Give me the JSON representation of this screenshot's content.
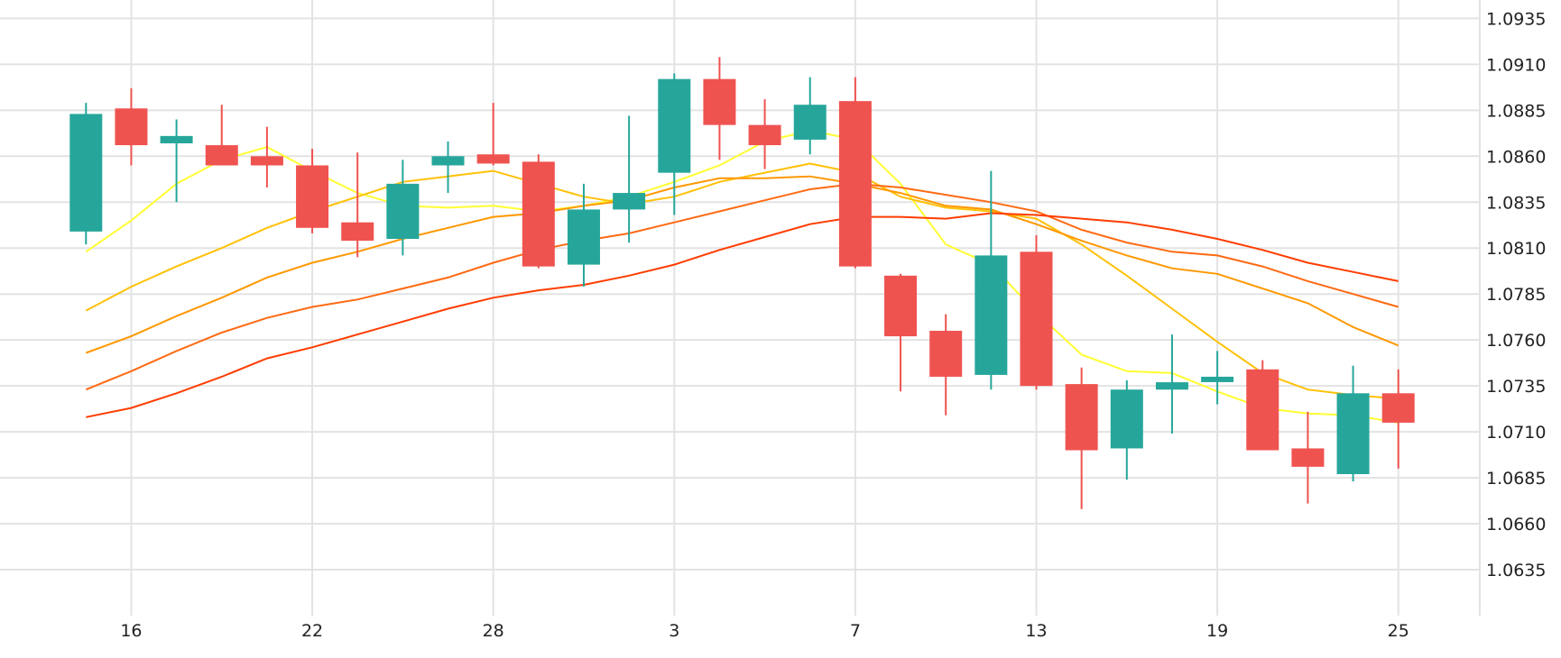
{
  "chart_data": {
    "type": "candlestick",
    "title": "",
    "xlabel": "",
    "ylabel": "",
    "ylim": [
      1.061,
      1.0945
    ],
    "grid": true,
    "y_ticks": [
      "1.0935",
      "1.0910",
      "1.0885",
      "1.0860",
      "1.0835",
      "1.0810",
      "1.0785",
      "1.0760",
      "1.0735",
      "1.0710",
      "1.0685",
      "1.0660",
      "1.0635"
    ],
    "x_ticks": [
      {
        "label": "16",
        "x": 1
      },
      {
        "label": "22",
        "x": 5
      },
      {
        "label": "28",
        "x": 9
      },
      {
        "label": "3",
        "x": 13
      },
      {
        "label": "7",
        "x": 17
      },
      {
        "label": "13",
        "x": 21
      },
      {
        "label": "19",
        "x": 25
      },
      {
        "label": "25",
        "x": 29
      }
    ],
    "x_range": [
      -1.9,
      30.8
    ],
    "colors": {
      "up": "#26a69a",
      "down": "#ef5350",
      "grid": "#e3e3e3",
      "text": "#222222"
    },
    "candles": [
      {
        "x": 0,
        "open": 1.0819,
        "high": 1.0889,
        "low": 1.0812,
        "close": 1.0883
      },
      {
        "x": 1,
        "open": 1.0886,
        "high": 1.0897,
        "low": 1.0855,
        "close": 1.0866
      },
      {
        "x": 2,
        "open": 1.0867,
        "high": 1.088,
        "low": 1.0835,
        "close": 1.0871
      },
      {
        "x": 3,
        "open": 1.0866,
        "high": 1.0888,
        "low": 1.0855,
        "close": 1.0855
      },
      {
        "x": 4,
        "open": 1.086,
        "high": 1.0876,
        "low": 1.0843,
        "close": 1.0855
      },
      {
        "x": 5,
        "open": 1.0855,
        "high": 1.0864,
        "low": 1.0818,
        "close": 1.0821
      },
      {
        "x": 6,
        "open": 1.0824,
        "high": 1.0862,
        "low": 1.0805,
        "close": 1.0814
      },
      {
        "x": 7,
        "open": 1.0815,
        "high": 1.0858,
        "low": 1.0806,
        "close": 1.0845
      },
      {
        "x": 8,
        "open": 1.0855,
        "high": 1.0868,
        "low": 1.084,
        "close": 1.086
      },
      {
        "x": 9,
        "open": 1.0861,
        "high": 1.0889,
        "low": 1.0855,
        "close": 1.0856
      },
      {
        "x": 10,
        "open": 1.0857,
        "high": 1.0861,
        "low": 1.0799,
        "close": 1.08
      },
      {
        "x": 11,
        "open": 1.0801,
        "high": 1.0845,
        "low": 1.0789,
        "close": 1.0831
      },
      {
        "x": 12,
        "open": 1.0831,
        "high": 1.0882,
        "low": 1.0813,
        "close": 1.084
      },
      {
        "x": 13,
        "open": 1.0851,
        "high": 1.0905,
        "low": 1.0828,
        "close": 1.0902
      },
      {
        "x": 14,
        "open": 1.0902,
        "high": 1.0914,
        "low": 1.0858,
        "close": 1.0877
      },
      {
        "x": 15,
        "open": 1.0877,
        "high": 1.0891,
        "low": 1.0853,
        "close": 1.0866
      },
      {
        "x": 16,
        "open": 1.0869,
        "high": 1.0903,
        "low": 1.0861,
        "close": 1.0888
      },
      {
        "x": 17,
        "open": 1.089,
        "high": 1.0903,
        "low": 1.0799,
        "close": 1.08
      },
      {
        "x": 18,
        "open": 1.0795,
        "high": 1.0796,
        "low": 1.0732,
        "close": 1.0762
      },
      {
        "x": 19,
        "open": 1.0765,
        "high": 1.0774,
        "low": 1.0719,
        "close": 1.074
      },
      {
        "x": 20,
        "open": 1.0741,
        "high": 1.0852,
        "low": 1.0733,
        "close": 1.0806
      },
      {
        "x": 21,
        "open": 1.0808,
        "high": 1.0817,
        "low": 1.0733,
        "close": 1.0735
      },
      {
        "x": 22,
        "open": 1.0736,
        "high": 1.0745,
        "low": 1.0668,
        "close": 1.07
      },
      {
        "x": 23,
        "open": 1.0701,
        "high": 1.0738,
        "low": 1.0684,
        "close": 1.0733
      },
      {
        "x": 24,
        "open": 1.0733,
        "high": 1.0763,
        "low": 1.0709,
        "close": 1.0737
      },
      {
        "x": 25,
        "open": 1.0738,
        "high": 1.0754,
        "low": 1.0725,
        "close": 1.074
      },
      {
        "x": 26,
        "open": 1.0744,
        "high": 1.0749,
        "low": 1.07,
        "close": 1.07
      },
      {
        "x": 27,
        "open": 1.0701,
        "high": 1.0721,
        "low": 1.0671,
        "close": 1.0691
      },
      {
        "x": 28,
        "open": 1.0687,
        "high": 1.0746,
        "low": 1.0683,
        "close": 1.0731
      },
      {
        "x": 29,
        "open": 1.0731,
        "high": 1.0744,
        "low": 1.069,
        "close": 1.0715
      }
    ],
    "series": [
      {
        "type": "line",
        "color": "#ffff33",
        "x": [
          0,
          1,
          2,
          3,
          4,
          5,
          6,
          7,
          8,
          9,
          10,
          11,
          12,
          13,
          14,
          15,
          16,
          17,
          18,
          19,
          20,
          21,
          22,
          23,
          24,
          25,
          26,
          27,
          28,
          29
        ],
        "values": [
          1.0808,
          1.0825,
          1.0845,
          1.0858,
          1.0865,
          1.0852,
          1.084,
          1.0833,
          1.0832,
          1.0833,
          1.083,
          1.0833,
          1.0838,
          1.0846,
          1.0855,
          1.0868,
          1.0874,
          1.0869,
          1.0845,
          1.0812,
          1.0801,
          1.0775,
          1.0752,
          1.0743,
          1.0742,
          1.0732,
          1.0723,
          1.072,
          1.0719,
          1.0715
        ]
      },
      {
        "type": "line",
        "color": "#ffc107",
        "x": [
          0,
          1,
          2,
          3,
          4,
          5,
          6,
          7,
          8,
          9,
          10,
          11,
          12,
          13,
          14,
          15,
          16,
          17,
          18,
          19,
          20,
          21,
          22,
          23,
          24,
          25,
          26,
          27,
          28,
          29
        ],
        "values": [
          1.0776,
          1.0789,
          1.08,
          1.081,
          1.0821,
          1.083,
          1.0838,
          1.0846,
          1.0849,
          1.0852,
          1.0845,
          1.0838,
          1.0834,
          1.0838,
          1.0846,
          1.0851,
          1.0856,
          1.0851,
          1.0838,
          1.0832,
          1.083,
          1.0826,
          1.0812,
          1.0795,
          1.0777,
          1.0759,
          1.0742,
          1.0733,
          1.073,
          1.0728
        ]
      },
      {
        "type": "line",
        "color": "#ff9800",
        "x": [
          0,
          1,
          2,
          3,
          4,
          5,
          6,
          7,
          8,
          9,
          10,
          11,
          12,
          13,
          14,
          15,
          16,
          17,
          18,
          19,
          20,
          21,
          22,
          23,
          24,
          25,
          26,
          27,
          28,
          29
        ],
        "values": [
          1.0753,
          1.0762,
          1.0773,
          1.0783,
          1.0794,
          1.0802,
          1.0808,
          1.0815,
          1.0821,
          1.0827,
          1.0829,
          1.0833,
          1.0836,
          1.0843,
          1.0848,
          1.0848,
          1.0849,
          1.0845,
          1.084,
          1.0833,
          1.0831,
          1.0823,
          1.0814,
          1.0806,
          1.0799,
          1.0796,
          1.0788,
          1.078,
          1.0767,
          1.0757
        ]
      },
      {
        "type": "line",
        "color": "#ff6a13",
        "x": [
          0,
          1,
          2,
          3,
          4,
          5,
          6,
          7,
          8,
          9,
          10,
          11,
          12,
          13,
          14,
          15,
          16,
          17,
          18,
          19,
          20,
          21,
          22,
          23,
          24,
          25,
          26,
          27,
          28,
          29
        ],
        "values": [
          1.0733,
          1.0743,
          1.0754,
          1.0764,
          1.0772,
          1.0778,
          1.0782,
          1.0788,
          1.0794,
          1.0802,
          1.0809,
          1.0814,
          1.0818,
          1.0824,
          1.083,
          1.0836,
          1.0842,
          1.0845,
          1.0843,
          1.0839,
          1.0835,
          1.083,
          1.082,
          1.0813,
          1.0808,
          1.0806,
          1.08,
          1.0792,
          1.0785,
          1.0778
        ]
      },
      {
        "type": "line",
        "color": "#ff3d00",
        "x": [
          0,
          1,
          2,
          3,
          4,
          5,
          6,
          7,
          8,
          9,
          10,
          11,
          12,
          13,
          14,
          15,
          16,
          17,
          18,
          19,
          20,
          21,
          22,
          23,
          24,
          25,
          26,
          27,
          28,
          29
        ],
        "values": [
          1.0718,
          1.0723,
          1.0731,
          1.074,
          1.075,
          1.0756,
          1.0763,
          1.077,
          1.0777,
          1.0783,
          1.0787,
          1.079,
          1.0795,
          1.0801,
          1.0809,
          1.0816,
          1.0823,
          1.0827,
          1.0827,
          1.0826,
          1.0829,
          1.0828,
          1.0826,
          1.0824,
          1.082,
          1.0815,
          1.0809,
          1.0802,
          1.0797,
          1.0792
        ]
      }
    ]
  }
}
